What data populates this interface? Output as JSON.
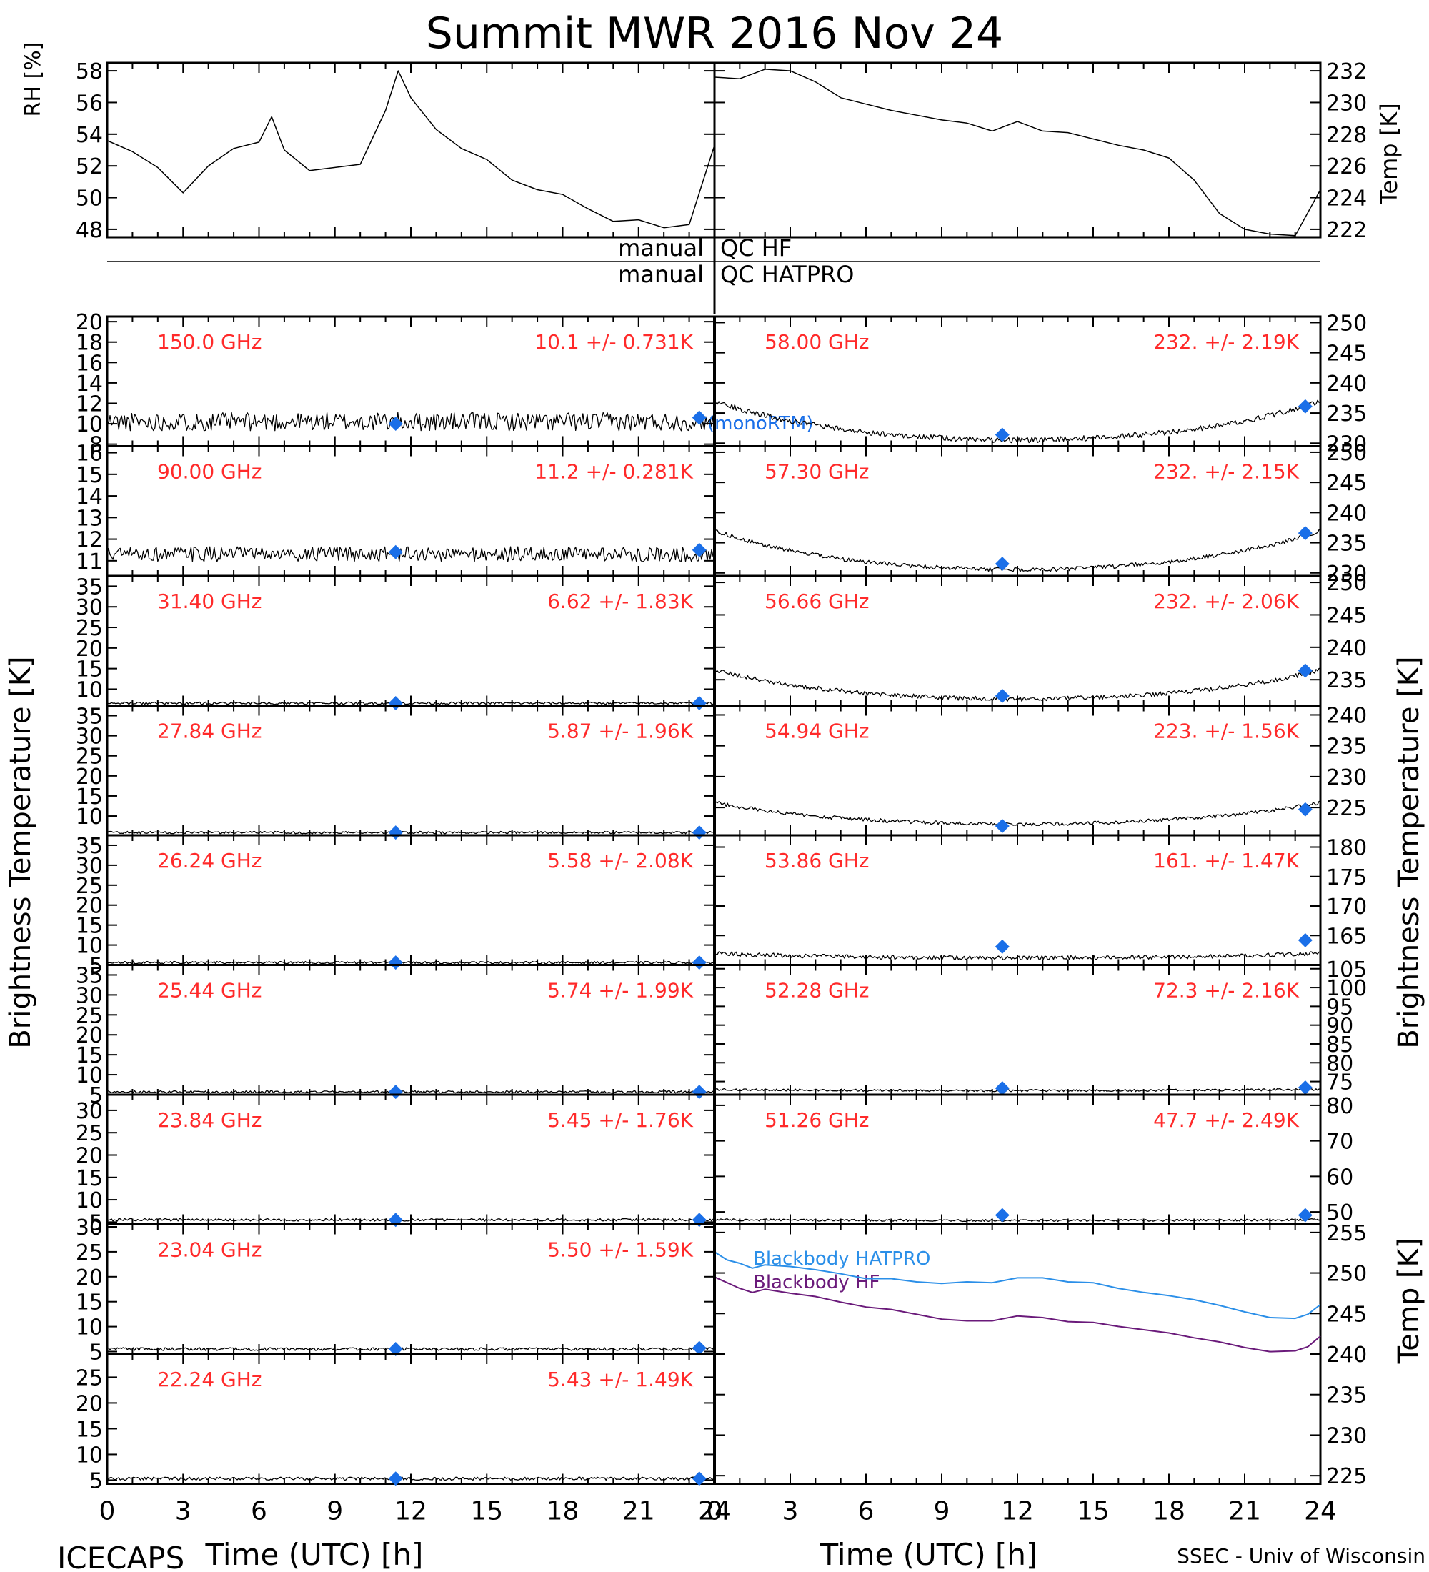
{
  "title": "Summit MWR 2016 Nov 24",
  "footer": {
    "left": "ICECAPS",
    "right": "SSEC - Univ of Wisconsin"
  },
  "colors": {
    "axis": "#000000",
    "trace": "#000000",
    "freq_label": "#ff2a2a",
    "marker": "#1a6fe8",
    "bb_hatpro": "#2b8fe8",
    "bb_hf": "#6a1a7a"
  },
  "x_axis": {
    "label": "Time (UTC) [h]",
    "ticks": [
      0,
      3,
      6,
      9,
      12,
      15,
      18,
      21,
      24
    ]
  },
  "y_labels": {
    "rh": "RH [%]",
    "temp": "Temp [K]",
    "brightness": "Brightness Temperature [K]",
    "bb_temp": "Temp [K]"
  },
  "qc": {
    "row1_left": "manual",
    "row1_right": "QC HF",
    "row2_left": "manual",
    "row2_right": "QC HATPRO"
  },
  "legend": {
    "hatpro": "Blackbody HATPRO",
    "hf": "Blackbody HF",
    "model": "(monoRTM)"
  },
  "chart_data": [
    {
      "panel": "rh",
      "type": "line",
      "xlim": [
        0,
        24
      ],
      "ylim": [
        47.5,
        58.5
      ],
      "ticks": [
        48,
        50,
        52,
        54,
        56,
        58
      ],
      "x": [
        0,
        1,
        2,
        3,
        4,
        5,
        6,
        6.5,
        7,
        8,
        9,
        10,
        11,
        11.5,
        12,
        13,
        14,
        15,
        16,
        17,
        18,
        19,
        20,
        21,
        22,
        23,
        24
      ],
      "y": [
        53.6,
        52.9,
        51.9,
        50.3,
        52,
        53.1,
        53.5,
        55.1,
        53,
        51.7,
        51.9,
        52.1,
        55.5,
        58,
        56.3,
        54.3,
        53.1,
        52.4,
        51.1,
        50.5,
        50.2,
        49.3,
        48.5,
        48.6,
        48.1,
        48.3,
        53.3
      ]
    },
    {
      "panel": "temp",
      "type": "line",
      "xlim": [
        0,
        24
      ],
      "ylim": [
        221.5,
        232.5
      ],
      "ticks": [
        222,
        224,
        226,
        228,
        230,
        232
      ],
      "x": [
        0,
        1,
        2,
        3,
        4,
        5,
        6,
        7,
        8,
        9,
        10,
        11,
        12,
        13,
        14,
        15,
        16,
        17,
        18,
        19,
        20,
        21,
        22,
        23,
        24
      ],
      "y": [
        231.6,
        231.5,
        232.1,
        232,
        231.3,
        230.3,
        229.9,
        229.5,
        229.2,
        228.9,
        228.7,
        228.2,
        228.8,
        228.2,
        228.1,
        227.7,
        227.3,
        227,
        226.5,
        225.1,
        223,
        222,
        221.7,
        221.6,
        224.5
      ]
    },
    {
      "panel": "left-1",
      "freq": "150.0 GHz",
      "stats": "10.1 +/- 0.731K",
      "type": "line",
      "xlim": [
        0,
        24
      ],
      "ylim": [
        7.8,
        20.5
      ],
      "ticks": [
        8,
        10,
        12,
        14,
        16,
        18,
        20
      ],
      "base": 10.2,
      "shape": [
        0,
        0,
        0
      ],
      "noise": 0.9,
      "markers": [
        {
          "x": 11.4,
          "y": 10
        },
        {
          "x": 23.4,
          "y": 10.6
        }
      ]
    },
    {
      "panel": "left-2",
      "freq": "90.00 GHz",
      "stats": "11.2 +/- 0.281K",
      "type": "line",
      "xlim": [
        0,
        24
      ],
      "ylim": [
        10.3,
        16.3
      ],
      "ticks": [
        11,
        12,
        13,
        14,
        15,
        16
      ],
      "base": 11.3,
      "shape": [
        0,
        0,
        0
      ],
      "noise": 0.35,
      "markers": [
        {
          "x": 11.4,
          "y": 11.4
        },
        {
          "x": 23.4,
          "y": 11.5
        }
      ]
    },
    {
      "panel": "left-3",
      "freq": "31.40 GHz",
      "stats": "6.62 +/- 1.83K",
      "type": "line",
      "xlim": [
        0,
        24
      ],
      "ylim": [
        6,
        37.5
      ],
      "ticks": [
        10,
        15,
        20,
        25,
        30,
        35
      ],
      "base": 6.6,
      "shape": [
        0,
        0,
        0
      ],
      "noise": 0.3,
      "markers": [
        {
          "x": 11.4,
          "y": 6.6
        },
        {
          "x": 23.4,
          "y": 6.6
        }
      ]
    },
    {
      "panel": "left-4",
      "freq": "27.84 GHz",
      "stats": "5.87 +/- 1.96K",
      "type": "line",
      "xlim": [
        0,
        24
      ],
      "ylim": [
        5.2,
        37.5
      ],
      "ticks": [
        10,
        15,
        20,
        25,
        30,
        35
      ],
      "base": 5.9,
      "shape": [
        0,
        0,
        0
      ],
      "noise": 0.3,
      "markers": [
        {
          "x": 11.4,
          "y": 5.9
        },
        {
          "x": 23.4,
          "y": 5.9
        }
      ]
    },
    {
      "panel": "left-5",
      "freq": "26.24 GHz",
      "stats": "5.58 +/- 2.08K",
      "type": "line",
      "xlim": [
        0,
        24
      ],
      "ylim": [
        5,
        37.5
      ],
      "ticks": [
        5,
        10,
        15,
        20,
        25,
        30,
        35
      ],
      "base": 5.6,
      "shape": [
        0,
        0,
        0
      ],
      "noise": 0.3,
      "markers": [
        {
          "x": 11.4,
          "y": 5.6
        },
        {
          "x": 23.4,
          "y": 5.6
        }
      ]
    },
    {
      "panel": "left-6",
      "freq": "25.44 GHz",
      "stats": "5.74 +/- 1.99K",
      "type": "line",
      "xlim": [
        0,
        24
      ],
      "ylim": [
        5,
        37.5
      ],
      "ticks": [
        5,
        10,
        15,
        20,
        25,
        30,
        35
      ],
      "base": 5.7,
      "shape": [
        0,
        0,
        0
      ],
      "noise": 0.3,
      "markers": [
        {
          "x": 11.4,
          "y": 5.7
        },
        {
          "x": 23.4,
          "y": 5.7
        }
      ]
    },
    {
      "panel": "left-7",
      "freq": "23.84 GHz",
      "stats": "5.45 +/- 1.76K",
      "type": "line",
      "xlim": [
        0,
        24
      ],
      "ylim": [
        4.5,
        33.5
      ],
      "ticks": [
        5,
        10,
        15,
        20,
        25,
        30
      ],
      "base": 5.5,
      "shape": [
        0,
        0,
        0
      ],
      "noise": 0.3,
      "markers": [
        {
          "x": 11.4,
          "y": 5.5
        },
        {
          "x": 23.4,
          "y": 5.5
        }
      ]
    },
    {
      "panel": "left-8",
      "freq": "23.04 GHz",
      "stats": "5.50 +/- 1.59K",
      "type": "line",
      "xlim": [
        0,
        24
      ],
      "ylim": [
        4.5,
        30.5
      ],
      "ticks": [
        5,
        10,
        15,
        20,
        25,
        30
      ],
      "base": 5.5,
      "shape": [
        0,
        0,
        0
      ],
      "noise": 0.3,
      "markers": [
        {
          "x": 11.4,
          "y": 5.5
        },
        {
          "x": 23.4,
          "y": 5.7
        }
      ]
    },
    {
      "panel": "left-9",
      "freq": "22.24 GHz",
      "stats": "5.43 +/- 1.49K",
      "type": "line",
      "xlim": [
        0,
        24
      ],
      "ylim": [
        4.3,
        29.5
      ],
      "ticks": [
        5,
        10,
        15,
        20,
        25
      ],
      "base": 5.3,
      "shape": [
        0,
        0,
        0
      ],
      "noise": 0.3,
      "markers": [
        {
          "x": 11.4,
          "y": 5.3
        },
        {
          "x": 23.4,
          "y": 5.3
        }
      ]
    },
    {
      "panel": "right-1",
      "freq": "58.00 GHz",
      "stats": "232. +/- 2.19K",
      "type": "line",
      "xlim": [
        0,
        24
      ],
      "ylim": [
        229.5,
        251
      ],
      "ticks": [
        230,
        235,
        240,
        245,
        250
      ],
      "base": 230.5,
      "shape": [
        6.5,
        0,
        6.5
      ],
      "noise": 0.45,
      "markers": [
        {
          "x": 11.4,
          "y": 231.4
        },
        {
          "x": 23.4,
          "y": 236.1
        }
      ]
    },
    {
      "panel": "right-2",
      "freq": "57.30 GHz",
      "stats": "232. +/- 2.15K",
      "type": "line",
      "xlim": [
        0,
        24
      ],
      "ylim": [
        229.5,
        251
      ],
      "ticks": [
        230,
        235,
        240,
        245,
        250
      ],
      "base": 230.5,
      "shape": [
        6.5,
        0,
        6.5
      ],
      "noise": 0.35,
      "markers": [
        {
          "x": 11.4,
          "y": 231.5
        },
        {
          "x": 23.4,
          "y": 236.6
        }
      ]
    },
    {
      "panel": "right-3",
      "freq": "56.66 GHz",
      "stats": "232. +/- 2.06K",
      "type": "line",
      "xlim": [
        0,
        24
      ],
      "ylim": [
        231,
        251
      ],
      "ticks": [
        235,
        240,
        245,
        250
      ],
      "base": 232,
      "shape": [
        4.5,
        0,
        4.5
      ],
      "noise": 0.35,
      "markers": [
        {
          "x": 11.4,
          "y": 232.5
        },
        {
          "x": 23.4,
          "y": 236.4
        }
      ]
    },
    {
      "panel": "right-4",
      "freq": "54.94 GHz",
      "stats": "223. +/- 1.56K",
      "type": "line",
      "xlim": [
        0,
        24
      ],
      "ylim": [
        220.5,
        241.5
      ],
      "ticks": [
        225,
        230,
        235,
        240
      ],
      "base": 222.3,
      "shape": [
        3.5,
        0,
        3.5
      ],
      "noise": 0.3,
      "markers": [
        {
          "x": 11.4,
          "y": 222
        },
        {
          "x": 23.4,
          "y": 224.7
        }
      ]
    },
    {
      "panel": "right-5",
      "freq": "53.86 GHz",
      "stats": "161. +/- 1.47K",
      "type": "line",
      "xlim": [
        0,
        24
      ],
      "ylim": [
        160,
        182
      ],
      "ticks": [
        165,
        170,
        175,
        180
      ],
      "base": 161.2,
      "shape": [
        0.8,
        0,
        0.8
      ],
      "noise": 0.35,
      "markers": [
        {
          "x": 11.4,
          "y": 163.1
        },
        {
          "x": 23.4,
          "y": 164.2
        }
      ]
    },
    {
      "panel": "right-6",
      "freq": "52.28 GHz",
      "stats": "72.3 +/- 2.16K",
      "type": "line",
      "xlim": [
        0,
        24
      ],
      "ylim": [
        71.5,
        106
      ],
      "ticks": [
        75,
        80,
        85,
        90,
        95,
        100,
        105
      ],
      "base": 72.6,
      "shape": [
        0.3,
        0,
        0.3
      ],
      "noise": 0.3,
      "markers": [
        {
          "x": 11.4,
          "y": 73.2
        },
        {
          "x": 23.4,
          "y": 73.4
        }
      ]
    },
    {
      "panel": "right-7",
      "freq": "51.26 GHz",
      "stats": "47.7 +/- 2.49K",
      "type": "line",
      "xlim": [
        0,
        24
      ],
      "ylim": [
        46.5,
        83
      ],
      "ticks": [
        50,
        60,
        70,
        80
      ],
      "base": 47.6,
      "shape": [
        0.2,
        0,
        0.2
      ],
      "noise": 0.3,
      "markers": [
        {
          "x": 11.4,
          "y": 49.1
        },
        {
          "x": 23.4,
          "y": 49.1
        }
      ]
    },
    {
      "panel": "blackbody",
      "type": "line",
      "xlim": [
        0,
        24
      ],
      "ylim": [
        224,
        256
      ],
      "ticks": [
        225,
        230,
        235,
        240,
        245,
        250,
        255
      ],
      "series": [
        {
          "name": "Blackbody HATPRO",
          "x": [
            0,
            0.5,
            1,
            1.5,
            2,
            3,
            4,
            5,
            6,
            7,
            8,
            9,
            10,
            11,
            12,
            13,
            14,
            15,
            16,
            17,
            18,
            19,
            20,
            21,
            22,
            23,
            23.5,
            24
          ],
          "y": [
            252.6,
            251.6,
            251.2,
            250.6,
            251,
            250.8,
            250.4,
            249.9,
            249.3,
            249.3,
            248.9,
            248.7,
            248.9,
            248.8,
            249.4,
            249.4,
            248.9,
            248.8,
            248.1,
            247.6,
            247.2,
            246.7,
            246,
            245.2,
            244.5,
            244.4,
            244.9,
            246.1
          ]
        },
        {
          "name": "Blackbody HF",
          "x": [
            0,
            0.5,
            1,
            1.5,
            2,
            3,
            4,
            5,
            6,
            7,
            8,
            9,
            10,
            11,
            12,
            13,
            14,
            15,
            16,
            17,
            18,
            19,
            20,
            21,
            22,
            23,
            23.5,
            24
          ],
          "y": [
            249.5,
            248.8,
            248.1,
            247.6,
            248,
            247.5,
            247.1,
            246.4,
            245.8,
            245.5,
            244.9,
            244.3,
            244.1,
            244.1,
            244.7,
            244.5,
            244,
            243.9,
            243.4,
            243,
            242.6,
            242,
            241.5,
            240.8,
            240.3,
            240.4,
            240.9,
            242.2
          ]
        }
      ]
    }
  ]
}
